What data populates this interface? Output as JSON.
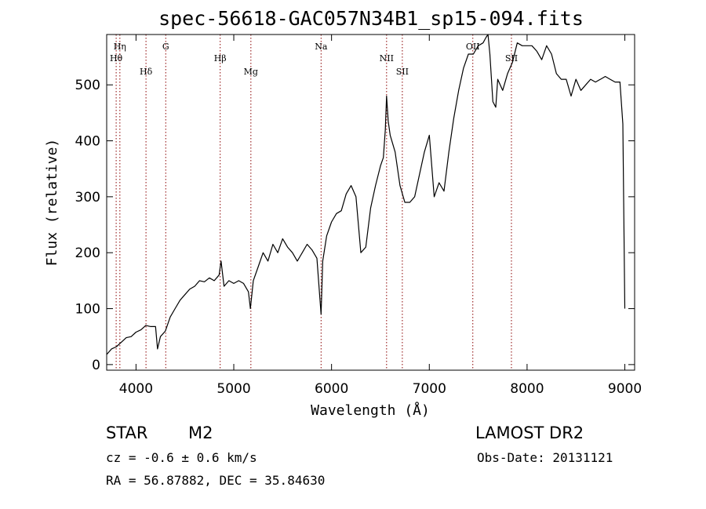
{
  "chart_data": {
    "type": "line",
    "title": "spec-56618-GAC057N34B1_sp15-094.fits",
    "xlabel": "Wavelength (Å)",
    "ylabel": "Flux (relative)",
    "xlim": [
      3700,
      9100
    ],
    "ylim": [
      -10,
      590
    ],
    "x_ticks": [
      4000,
      5000,
      6000,
      7000,
      8000,
      9000
    ],
    "y_ticks": [
      0,
      100,
      200,
      300,
      400,
      500
    ],
    "grid": false,
    "line_color": "#000000",
    "marker_color": "#8b0000",
    "spectral_lines": [
      {
        "label": "Hη",
        "x": 3835
      },
      {
        "label": "Hθ",
        "x": 3797
      },
      {
        "label": "Hδ",
        "x": 4102
      },
      {
        "label": "G",
        "x": 4304
      },
      {
        "label": "Hβ",
        "x": 4861
      },
      {
        "label": "Mg",
        "x": 5175
      },
      {
        "label": "Na",
        "x": 5893
      },
      {
        "label": "NII",
        "x": 6563
      },
      {
        "label": "SII",
        "x": 6724
      },
      {
        "label": "OII",
        "x": 7445
      },
      {
        "label": "SII",
        "x": 7840
      }
    ],
    "series": [
      {
        "x": [
          3700,
          3750,
          3800,
          3850,
          3900,
          3950,
          4000,
          4050,
          4100,
          4150,
          4200,
          4220,
          4250,
          4300,
          4350,
          4400,
          4450,
          4500,
          4550,
          4600,
          4650,
          4700,
          4750,
          4800,
          4850,
          4870,
          4900,
          4950,
          5000,
          5050,
          5100,
          5150,
          5170,
          5200,
          5250,
          5300,
          5350,
          5400,
          5450,
          5500,
          5550,
          5600,
          5650,
          5700,
          5750,
          5800,
          5850,
          5880,
          5893,
          5910,
          5950,
          6000,
          6050,
          6100,
          6150,
          6200,
          6250,
          6300,
          6350,
          6400,
          6450,
          6500,
          6530,
          6550,
          6563,
          6580,
          6600,
          6650,
          6700,
          6750,
          6800,
          6850,
          6900,
          6950,
          7000,
          7050,
          7100,
          7150,
          7200,
          7250,
          7300,
          7350,
          7400,
          7450,
          7500,
          7550,
          7580,
          7600,
          7620,
          7650,
          7680,
          7700,
          7750,
          7800,
          7850,
          7900,
          7950,
          8000,
          8050,
          8100,
          8150,
          8200,
          8250,
          8300,
          8350,
          8400,
          8450,
          8500,
          8550,
          8600,
          8650,
          8700,
          8750,
          8800,
          8850,
          8900,
          8950,
          8980,
          9000
        ],
        "values": [
          18,
          28,
          32,
          40,
          48,
          50,
          58,
          62,
          70,
          68,
          68,
          28,
          50,
          60,
          85,
          100,
          115,
          125,
          135,
          140,
          150,
          148,
          155,
          150,
          160,
          185,
          140,
          150,
          145,
          150,
          145,
          130,
          100,
          150,
          175,
          200,
          185,
          215,
          200,
          225,
          210,
          200,
          185,
          200,
          215,
          205,
          190,
          120,
          90,
          185,
          230,
          255,
          270,
          275,
          305,
          320,
          300,
          200,
          210,
          280,
          320,
          355,
          370,
          420,
          480,
          435,
          410,
          380,
          320,
          290,
          290,
          300,
          340,
          380,
          410,
          300,
          325,
          310,
          380,
          440,
          490,
          530,
          555,
          555,
          570,
          575,
          585,
          590,
          555,
          470,
          460,
          510,
          490,
          520,
          540,
          575,
          570,
          570,
          570,
          560,
          545,
          570,
          555,
          520,
          510,
          510,
          480,
          510,
          490,
          500,
          510,
          505,
          510,
          515,
          510,
          505,
          505,
          430,
          100
        ]
      }
    ]
  },
  "footer": {
    "object_class": "STAR",
    "subclass": "M2",
    "survey": "LAMOST DR2",
    "redshift": "cz = -0.6 ± 0.6 km/s",
    "obs_date": "Obs-Date: 20131121",
    "coords": "RA =  56.87882, DEC =  35.84630"
  }
}
